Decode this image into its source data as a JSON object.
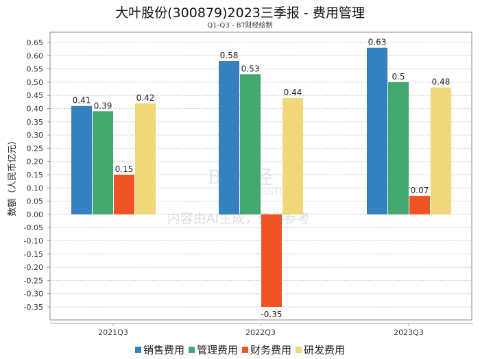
{
  "title": "大叶股份(300879)2023三季报 - 费用管理",
  "subtitle": "Q1-Q3 - BT财经绘制",
  "watermark": {
    "logo": "BT财经",
    "logo_sub": "BUSINESSTIMES",
    "notice": "内容由AI生成，仅供参考"
  },
  "chart_data": {
    "type": "bar",
    "title": "大叶股份(300879)2023三季报 - 费用管理",
    "subtitle": "Q1-Q3 - BT财经绘制",
    "xlabel": "",
    "ylabel": "数额（人民币亿元）",
    "ylim": [
      -0.35,
      0.65
    ],
    "ytick_step": 0.05,
    "yticks": [
      "0.65",
      "0.60",
      "0.55",
      "0.50",
      "0.45",
      "0.40",
      "0.35",
      "0.30",
      "0.25",
      "0.20",
      "0.15",
      "0.10",
      "0.05",
      "0.00",
      "-0.05",
      "-0.10",
      "-0.15",
      "-0.20",
      "-0.25",
      "-0.30",
      "-0.35"
    ],
    "grid": true,
    "legend_position": "bottom",
    "categories": [
      "2021Q3",
      "2022Q3",
      "2023Q3"
    ],
    "series": [
      {
        "name": "销售费用",
        "color": "#3580bf",
        "values": [
          0.41,
          0.58,
          0.63
        ],
        "labels": [
          "0.41",
          "0.58",
          "0.63"
        ]
      },
      {
        "name": "管理费用",
        "color": "#43a870",
        "values": [
          0.39,
          0.53,
          0.5
        ],
        "labels": [
          "0.39",
          "0.53",
          "0.5"
        ]
      },
      {
        "name": "财务费用",
        "color": "#f05426",
        "values": [
          0.15,
          -0.35,
          0.07
        ],
        "labels": [
          "0.15",
          "-0.35",
          "0.07"
        ]
      },
      {
        "name": "研发费用",
        "color": "#efd77a",
        "values": [
          0.42,
          0.44,
          0.48
        ],
        "labels": [
          "0.42",
          "0.44",
          "0.48"
        ]
      }
    ]
  }
}
